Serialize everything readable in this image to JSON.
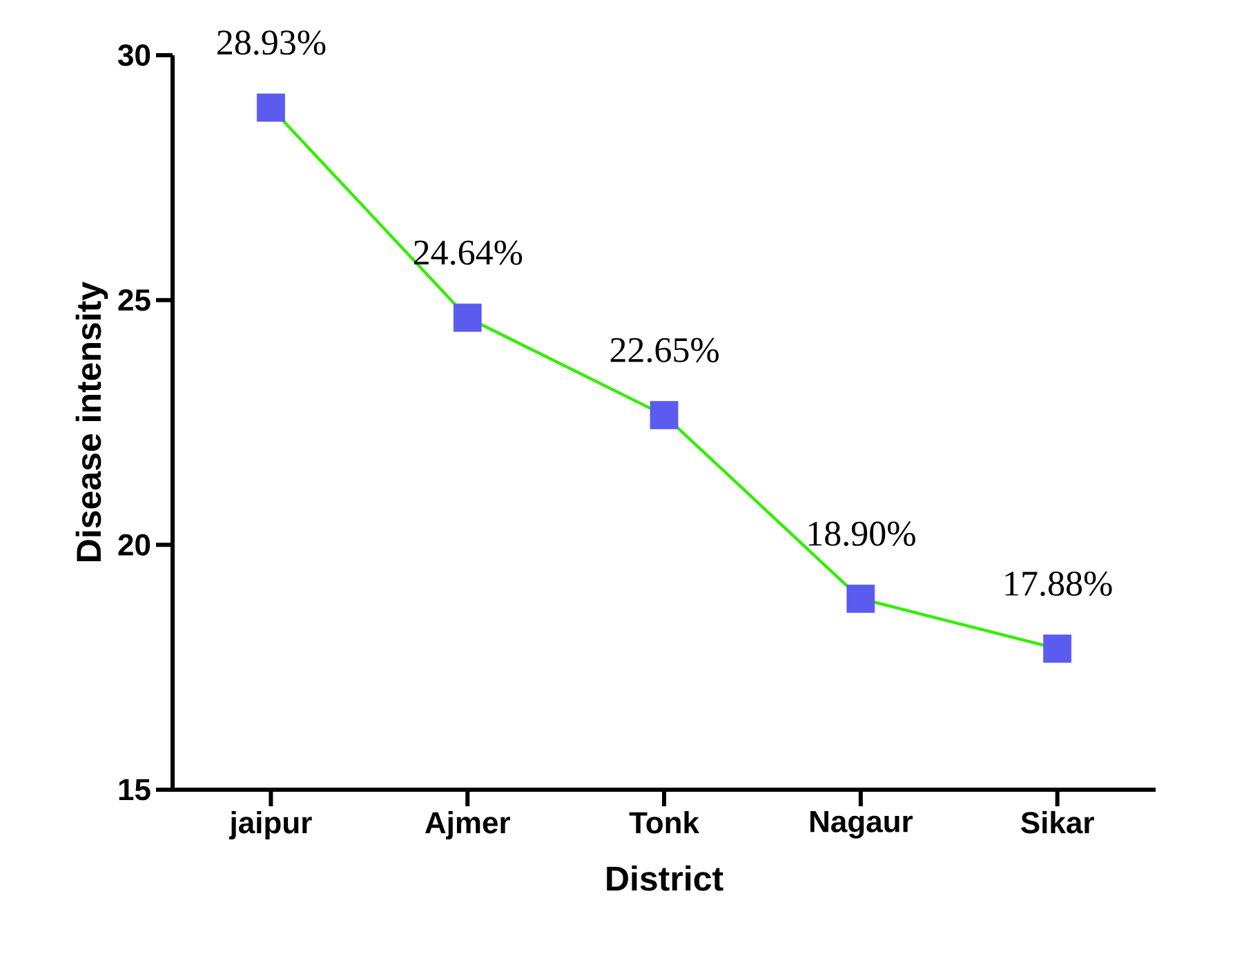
{
  "chart_data": {
    "type": "line",
    "xlabel": "District",
    "ylabel": "Disease intensity",
    "categories": [
      "jaipur",
      "Ajmer",
      "Tonk",
      "Nagaur",
      "Sikar"
    ],
    "series": [
      {
        "color": "#33ee00",
        "values": [
          28.93,
          24.64,
          22.65,
          18.9,
          17.88
        ],
        "colors": [
          "#5b5bf0",
          "#5b5bf0",
          "#5b5bf0",
          "#5b5bf0",
          "#5b5bf0"
        ],
        "value_labels": [
          "28.93%",
          "24.64%",
          "22.65%",
          "18.90%",
          "17.88%"
        ]
      }
    ],
    "marker": "square",
    "line_style": "solid",
    "ylim": [
      15,
      30
    ],
    "yticks": [
      15,
      20,
      25,
      30
    ]
  }
}
